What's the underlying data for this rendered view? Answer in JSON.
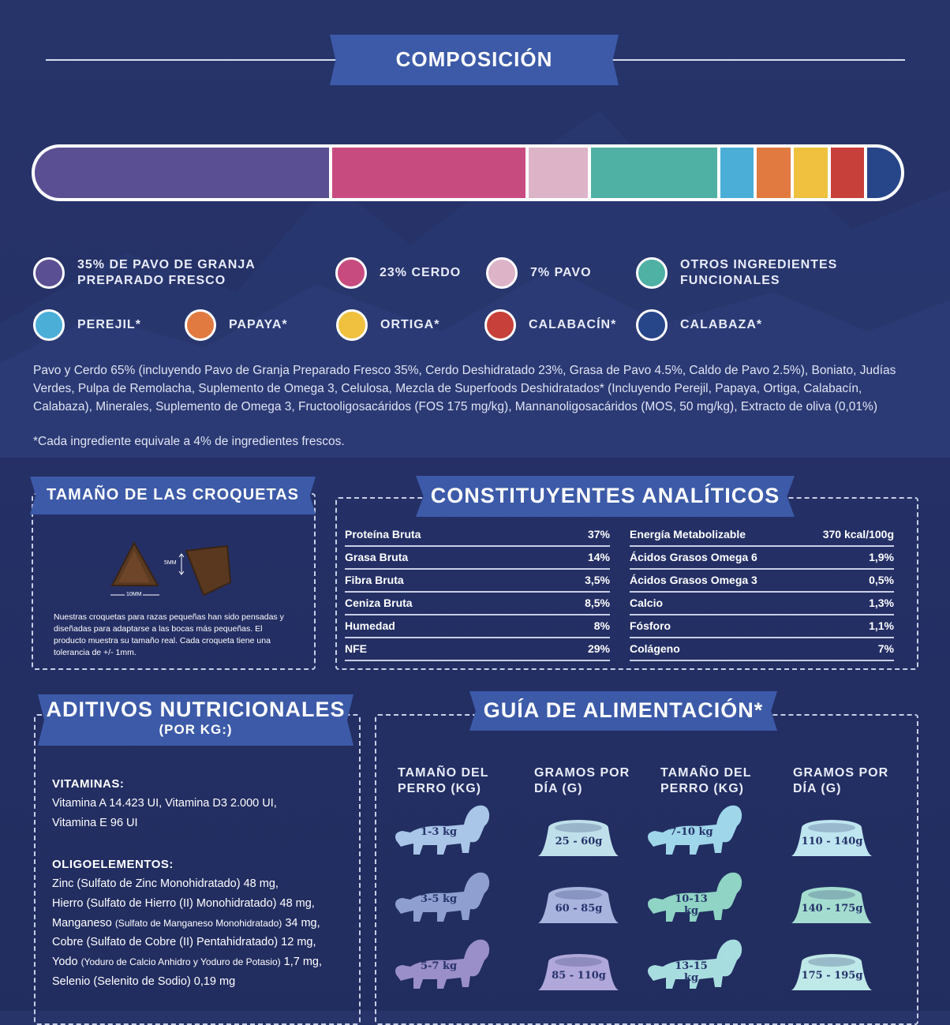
{
  "composicion": {
    "title": "COMPOSICIÓN",
    "bar": [
      {
        "color": "#5b4f93",
        "pct": 35
      },
      {
        "color": "#c84b80",
        "pct": 23
      },
      {
        "color": "#ddb3c8",
        "pct": 7
      },
      {
        "color": "#4fb0a4",
        "pct": 15
      },
      {
        "color": "#4aaed7",
        "pct": 4
      },
      {
        "color": "#e07a40",
        "pct": 4
      },
      {
        "color": "#efc13f",
        "pct": 4
      },
      {
        "color": "#c8403a",
        "pct": 4
      },
      {
        "color": "#27468a",
        "pct": 4
      }
    ],
    "legend": [
      {
        "label": "35% DE PAVO DE GRANJA\nPREPARADO FRESCO",
        "color": "#5b4f93"
      },
      {
        "label": "23% CERDO",
        "color": "#c84b80"
      },
      {
        "label": "7% PAVO",
        "color": "#ddb3c8"
      },
      {
        "label": "OTROS INGREDIENTES\nFUNCIONALES",
        "color": "#4fb0a4"
      },
      {
        "label": "PEREJIL*",
        "color": "#4aaed7"
      },
      {
        "label": "PAPAYA*",
        "color": "#e07a40"
      },
      {
        "label": "ORTIGA*",
        "color": "#efc13f"
      },
      {
        "label": "CALABACÍN*",
        "color": "#c8403a"
      },
      {
        "label": "CALABAZA*",
        "color": "#27468a"
      }
    ],
    "ingredients": "Pavo y Cerdo 65% (incluyendo Pavo de Granja Preparado Fresco 35%, Cerdo Deshidratado 23%, Grasa de Pavo 4.5%, Caldo de Pavo 2.5%), Boniato, Judías Verdes, Pulpa de Remolacha, Suplemento de Omega 3, Celulosa, Mezcla de Superfoods Deshidratados* (Incluyendo Perejil, Papaya, Ortiga, Calabacín, Calabaza), Minerales, Suplemento de Omega 3, Fructooligosacáridos (FOS 175 mg/kg), Mannanoligosacáridos (MOS, 50 mg/kg), Extracto de oliva (0,01%)",
    "footnote": "*Cada ingrediente equivale a 4% de ingredientes frescos."
  },
  "croquetas": {
    "title": "TAMAÑO DE LAS CROQUETAS",
    "dim_width": "10MM",
    "dim_height": "5MM",
    "description": "Nuestras croquetas para razas pequeñas han sido pensadas y diseñadas para adaptarse a las bocas más pequeñas. El producto muestra su tamaño real. Cada croqueta tiene una tolerancia de +/- 1mm."
  },
  "analiticos": {
    "title": "CONSTITUYENTES ANALÍTICOS",
    "left": [
      {
        "name": "Proteína Bruta",
        "value": "37%"
      },
      {
        "name": "Grasa Bruta",
        "value": "14%"
      },
      {
        "name": "Fibra Bruta",
        "value": "3,5%"
      },
      {
        "name": "Ceniza Bruta",
        "value": "8,5%"
      },
      {
        "name": "Humedad",
        "value": "8%"
      },
      {
        "name": "NFE",
        "value": "29%"
      }
    ],
    "right": [
      {
        "name": "Energía Metabolizable",
        "value": "370 kcal/100g"
      },
      {
        "name": "Ácidos Grasos Omega 6",
        "value": "1,9%"
      },
      {
        "name": "Ácidos Grasos Omega 3",
        "value": "0,5%"
      },
      {
        "name": "Calcio",
        "value": "1,3%"
      },
      {
        "name": "Fósforo",
        "value": "1,1%"
      },
      {
        "name": "Colágeno",
        "value": "7%"
      }
    ]
  },
  "aditivos": {
    "title": "ADITIVOS NUTRICIONALES",
    "subtitle": "(POR KG:)",
    "vit_head": "VITAMINAS:",
    "vit_lines": [
      "Vitamina A 14.423 UI, Vitamina D3 2.000 UI,",
      "Vitamina E 96 UI"
    ],
    "oli_head": "OLIGOELEMENTOS:",
    "oli_lines": [
      {
        "main": "Zinc (Sulfato de Zinc Monohidratado) 48 mg,",
        "small": "",
        "tail": ""
      },
      {
        "main": "Hierro (Sulfato de Hierro (II) Monohidratado) 48 mg,",
        "small": "",
        "tail": ""
      },
      {
        "main": "Manganeso ",
        "small": "(Sulfato de Manganeso Monohidratado)",
        "tail": " 34 mg,"
      },
      {
        "main": "Cobre (Sulfato de Cobre (II) Pentahidratado) 12 mg,",
        "small": "",
        "tail": ""
      },
      {
        "main": "Yodo ",
        "small": "(Yoduro de Calcio Anhidro y Yoduro de Potasio)",
        "tail": " 1,7 mg,"
      },
      {
        "main": "Selenio (Selenito de Sodio) 0,19 mg",
        "small": "",
        "tail": ""
      }
    ]
  },
  "guia": {
    "title": "GUÍA DE ALIMENTACIÓN*",
    "headers": [
      "TAMAÑO DEL\nPERRO (KG)",
      "GRAMOS POR\nDÍA (G)",
      "TAMAÑO DEL\nPERRO (KG)",
      "GRAMOS POR\nDÍA (G)"
    ],
    "rows_left": [
      {
        "dog": "1-3 kg",
        "grams": "25 - 60g",
        "dog_color": "#a9c6e8",
        "bowl_color": "#bfe0ea"
      },
      {
        "dog": "3-5 kg",
        "grams": "60 - 85g",
        "dog_color": "#8f9fd0",
        "bowl_color": "#a8b4de"
      },
      {
        "dog": "5-7 kg",
        "grams": "85 - 110g",
        "dog_color": "#9a8fc8",
        "bowl_color": "#b0a8da"
      }
    ],
    "rows_right": [
      {
        "dog": "7-10 kg",
        "grams": "110 - 140g",
        "dog_color": "#9fd6ea",
        "bowl_color": "#bfe6f0"
      },
      {
        "dog": "10-13 kg",
        "grams": "140 - 175g",
        "dog_color": "#8fd4c4",
        "bowl_color": "#a4ddd0"
      },
      {
        "dog": "13-15 kg",
        "grams": "175 - 195g",
        "dog_color": "#a8dde0",
        "bowl_color": "#bfe8e8"
      }
    ]
  }
}
